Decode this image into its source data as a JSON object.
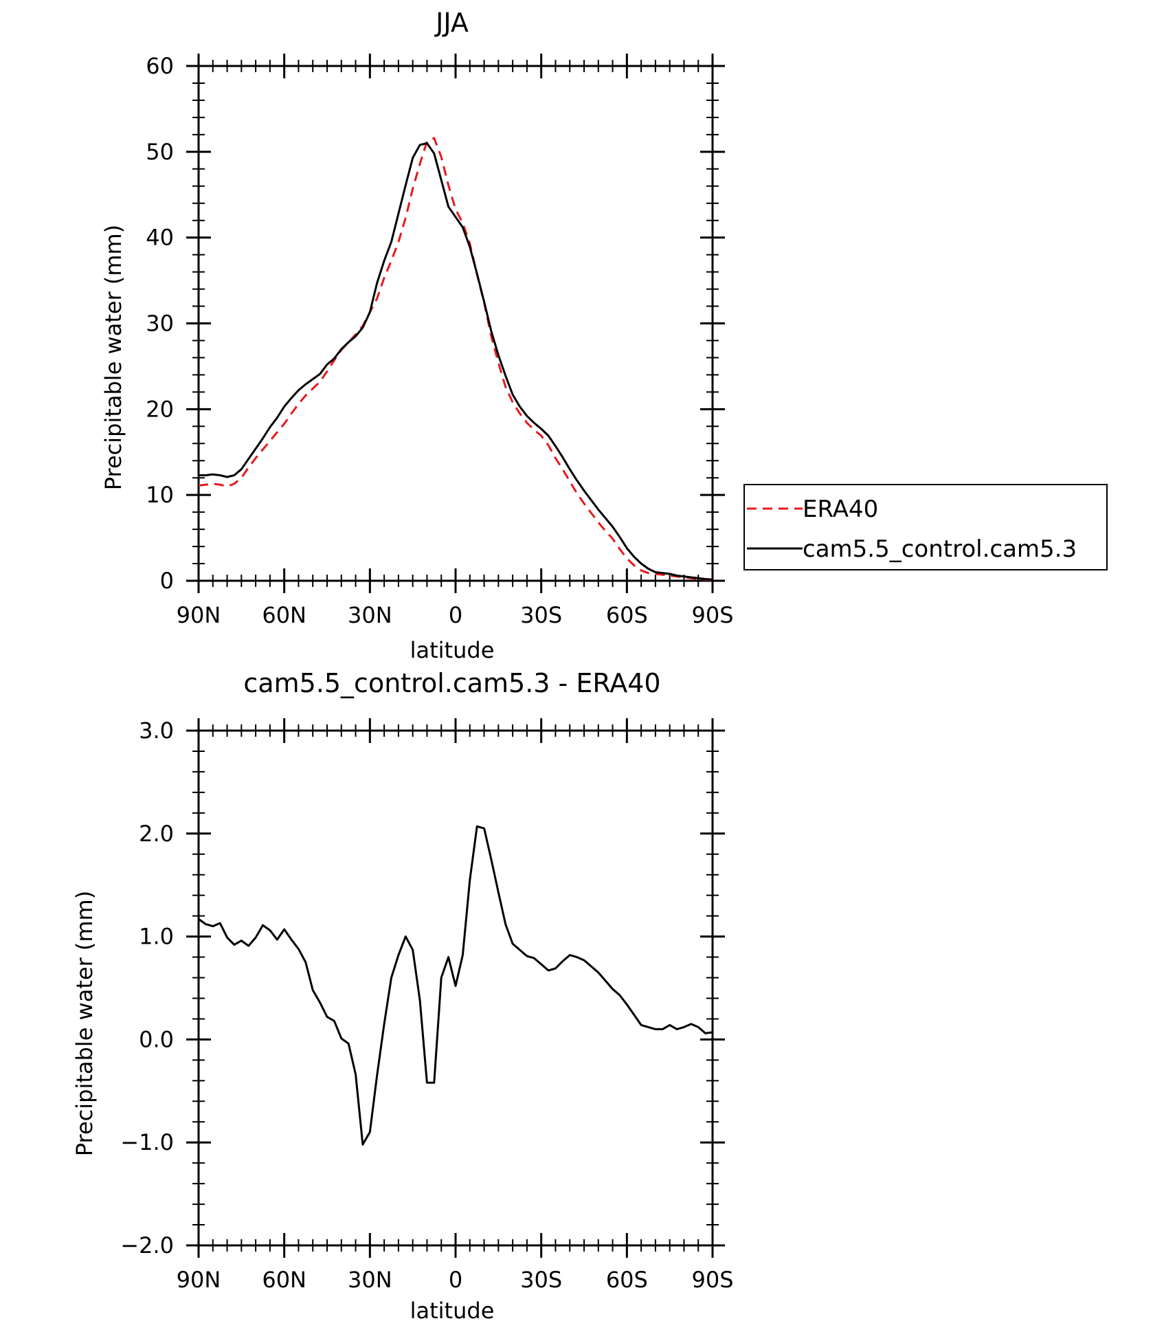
{
  "chart_data": [
    {
      "type": "line",
      "title": "JJA",
      "xlabel": "latitude",
      "ylabel": "Precipitable water (mm)",
      "x_tick_labels": [
        "90N",
        "60N",
        "30N",
        "0",
        "30S",
        "60S",
        "90S"
      ],
      "x_tick_values": [
        90,
        60,
        30,
        0,
        -30,
        -60,
        -90
      ],
      "xlim": [
        90,
        -90
      ],
      "ylim": [
        0,
        60
      ],
      "y_ticks": [
        0,
        10,
        20,
        30,
        40,
        50,
        60
      ],
      "y_tick_labels": [
        "0",
        "10",
        "20",
        "30",
        "40",
        "50",
        "60"
      ],
      "legend": {
        "placement": "right",
        "entries": [
          "ERA40",
          "cam5.5_control.cam5.3"
        ]
      },
      "series": [
        {
          "name": "ERA40",
          "color": "#e8191f",
          "dash": "dashed",
          "x": [
            90,
            87.5,
            85,
            82.5,
            80,
            77.5,
            75,
            72.5,
            70,
            67.5,
            65,
            62.5,
            60,
            57.5,
            55,
            52.5,
            50,
            47.5,
            45,
            42.5,
            40,
            37.5,
            35,
            32.5,
            30,
            27.5,
            25,
            22.5,
            20,
            17.5,
            15,
            12.5,
            10,
            7.5,
            5,
            2.5,
            0,
            -2.5,
            -5,
            -7.5,
            -10,
            -12.5,
            -15,
            -17.5,
            -20,
            -22.5,
            -25,
            -27.5,
            -30,
            -32.5,
            -35,
            -37.5,
            -40,
            -42.5,
            -45,
            -47.5,
            -50,
            -52.5,
            -55,
            -57.5,
            -60,
            -62.5,
            -65,
            -67.5,
            -70,
            -72.5,
            -75,
            -77.5,
            -80,
            -82.5,
            -85,
            -87.5,
            -90
          ],
          "y": [
            11.1,
            11.2,
            11.3,
            11.2,
            11.0,
            11.3,
            12.0,
            13.2,
            14.3,
            15.3,
            16.3,
            17.3,
            18.3,
            19.5,
            20.6,
            21.6,
            22.4,
            23.2,
            24.4,
            25.7,
            26.9,
            27.8,
            28.7,
            29.7,
            31.3,
            32.9,
            35.3,
            37.3,
            39.5,
            42.3,
            45.7,
            48.6,
            51.2,
            51.6,
            49.4,
            46.1,
            43.3,
            41.7,
            39.3,
            35.7,
            32.4,
            28.5,
            25.4,
            22.6,
            20.8,
            19.5,
            18.4,
            17.6,
            16.9,
            15.8,
            14.3,
            13.0,
            11.6,
            10.2,
            9.0,
            7.9,
            6.8,
            5.8,
            4.9,
            3.7,
            2.6,
            1.8,
            1.2,
            0.9,
            0.8,
            0.7,
            0.6,
            0.5,
            0.4,
            0.3,
            0.2,
            0.15,
            0.1
          ]
        },
        {
          "name": "cam5.5_control.cam5.3",
          "color": "#000000",
          "dash": "solid",
          "x": [
            90,
            87.5,
            85,
            82.5,
            80,
            77.5,
            75,
            72.5,
            70,
            67.5,
            65,
            62.5,
            60,
            57.5,
            55,
            52.5,
            50,
            47.5,
            45,
            42.5,
            40,
            37.5,
            35,
            32.5,
            30,
            27.5,
            25,
            22.5,
            20,
            17.5,
            15,
            12.5,
            10,
            7.5,
            5,
            2.5,
            0,
            -2.5,
            -5,
            -7.5,
            -10,
            -12.5,
            -15,
            -17.5,
            -20,
            -22.5,
            -25,
            -27.5,
            -30,
            -32.5,
            -35,
            -37.5,
            -40,
            -42.5,
            -45,
            -47.5,
            -50,
            -52.5,
            -55,
            -57.5,
            -60,
            -62.5,
            -65,
            -67.5,
            -70,
            -72.5,
            -75,
            -77.5,
            -80,
            -82.5,
            -85,
            -87.5,
            -90
          ],
          "y": [
            12.3,
            12.3,
            12.4,
            12.3,
            12.1,
            12.3,
            13.0,
            14.2,
            15.4,
            16.6,
            17.9,
            19.0,
            20.3,
            21.3,
            22.2,
            22.9,
            23.5,
            24.1,
            25.2,
            25.9,
            27.0,
            27.8,
            28.5,
            29.5,
            31.3,
            34.7,
            37.3,
            39.5,
            42.8,
            46.1,
            49.3,
            50.8,
            51.0,
            49.8,
            46.7,
            43.6,
            42.4,
            41.2,
            38.9,
            35.8,
            32.5,
            29.1,
            26.3,
            23.9,
            21.7,
            20.3,
            19.2,
            18.4,
            17.7,
            16.9,
            15.7,
            14.4,
            13.0,
            11.7,
            10.5,
            9.4,
            8.3,
            7.3,
            6.3,
            5.1,
            3.8,
            2.8,
            2.0,
            1.4,
            1.0,
            0.9,
            0.8,
            0.6,
            0.5,
            0.4,
            0.3,
            0.2,
            0.15
          ]
        }
      ]
    },
    {
      "type": "line",
      "title": "cam5.5_control.cam5.3 - ERA40",
      "xlabel": "latitude",
      "ylabel": "Precipitable water (mm)",
      "x_tick_labels": [
        "90N",
        "60N",
        "30N",
        "0",
        "30S",
        "60S",
        "90S"
      ],
      "x_tick_values": [
        90,
        60,
        30,
        0,
        -30,
        -60,
        -90
      ],
      "xlim": [
        90,
        -90
      ],
      "ylim": [
        -2.0,
        3.0
      ],
      "y_ticks": [
        -2.0,
        -1.0,
        0.0,
        1.0,
        2.0,
        3.0
      ],
      "y_tick_labels": [
        "−2.0",
        "−1.0",
        "0.0",
        "1.0",
        "2.0",
        "3.0"
      ],
      "series": [
        {
          "color": "#000000",
          "dash": "solid",
          "x": [
            90,
            87.5,
            85,
            82.5,
            80,
            77.5,
            75,
            72.5,
            70,
            67.5,
            65,
            62.5,
            60,
            57.5,
            55,
            52.5,
            50,
            47.5,
            45,
            42.5,
            40,
            37.5,
            35,
            32.5,
            30,
            27.5,
            25,
            22.5,
            20,
            17.5,
            15,
            12.5,
            10,
            7.5,
            5,
            2.5,
            0,
            -2.5,
            -5,
            -7.5,
            -10,
            -12.5,
            -15,
            -17.5,
            -20,
            -22.5,
            -25,
            -27.5,
            -30,
            -32.5,
            -35,
            -37.5,
            -40,
            -42.5,
            -45,
            -47.5,
            -50,
            -52.5,
            -55,
            -57.5,
            -60,
            -62.5,
            -65,
            -67.5,
            -70,
            -72.5,
            -75,
            -77.5,
            -80,
            -82.5,
            -85,
            -87.5,
            -90
          ],
          "y": [
            1.17,
            1.12,
            1.1,
            1.13,
            0.99,
            0.92,
            0.96,
            0.91,
            0.99,
            1.11,
            1.06,
            0.97,
            1.07,
            0.97,
            0.88,
            0.75,
            0.48,
            0.36,
            0.22,
            0.18,
            0.01,
            -0.04,
            -0.34,
            -1.02,
            -0.9,
            -0.35,
            0.15,
            0.6,
            0.82,
            1.0,
            0.87,
            0.38,
            -0.42,
            -0.42,
            0.6,
            0.8,
            0.52,
            0.82,
            1.55,
            2.07,
            2.05,
            1.75,
            1.43,
            1.12,
            0.93,
            0.87,
            0.81,
            0.79,
            0.73,
            0.67,
            0.69,
            0.76,
            0.82,
            0.8,
            0.77,
            0.71,
            0.65,
            0.57,
            0.49,
            0.43,
            0.34,
            0.24,
            0.14,
            0.12,
            0.1,
            0.1,
            0.14,
            0.1,
            0.12,
            0.15,
            0.12,
            0.06,
            0.07
          ]
        }
      ]
    }
  ]
}
